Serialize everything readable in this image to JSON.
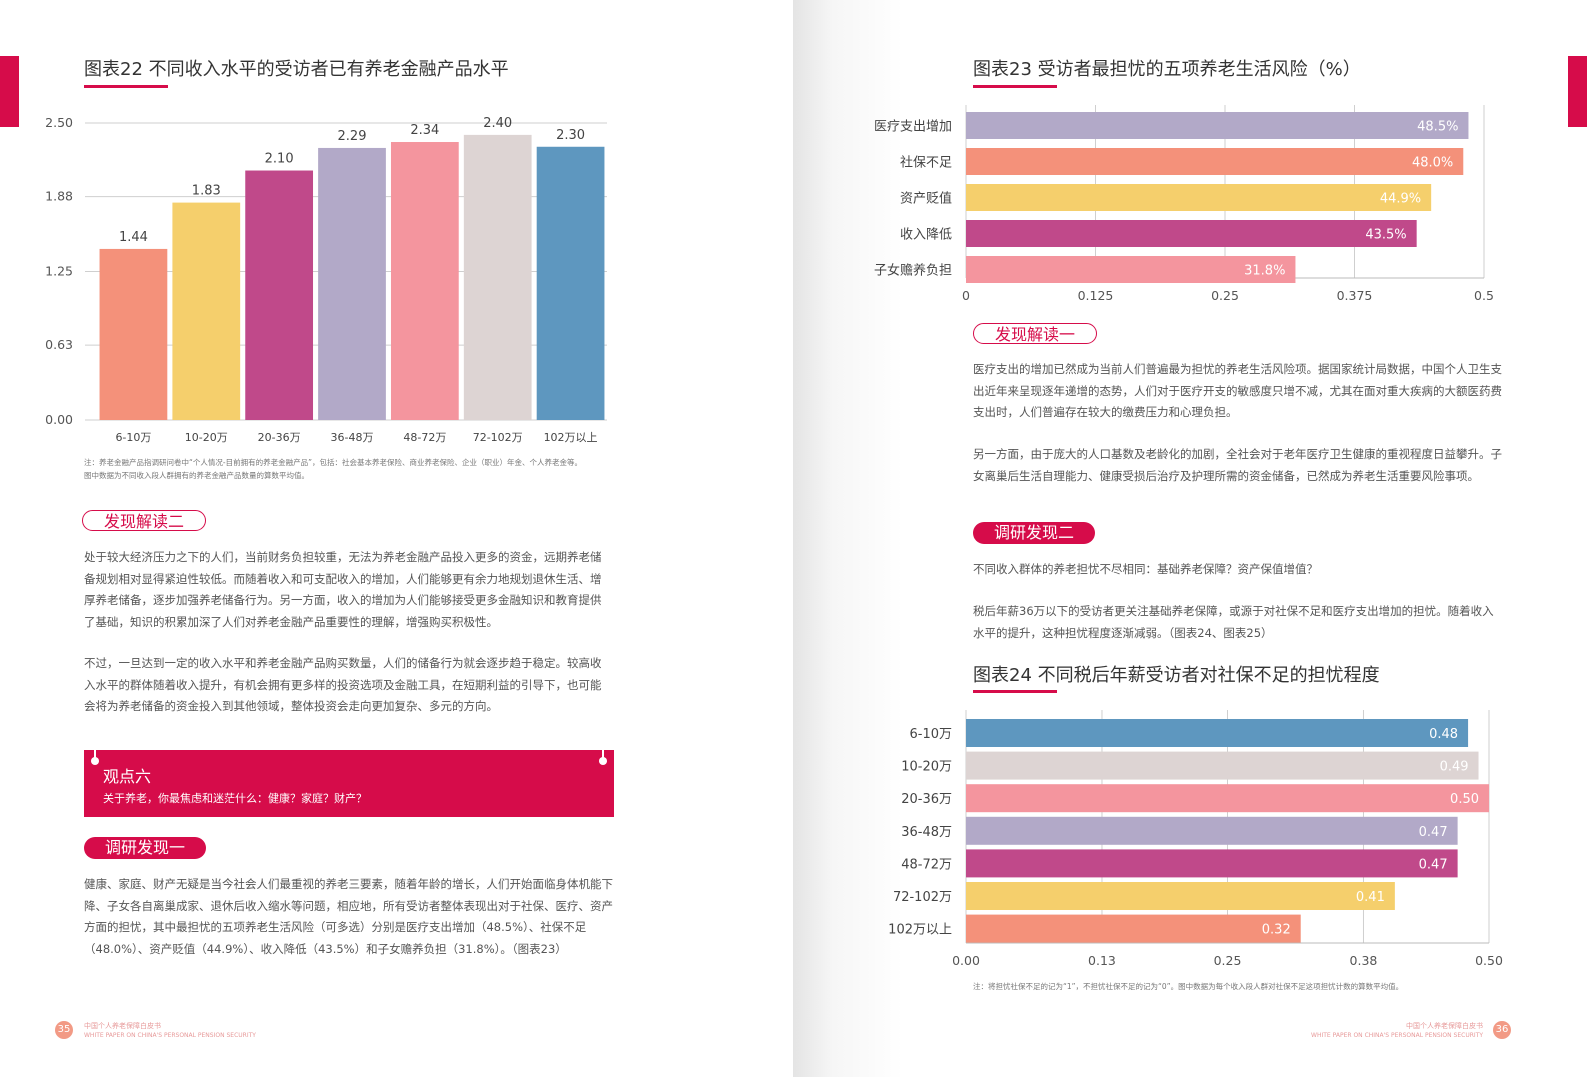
{
  "left_page": {
    "figure22": {
      "title": "图表22 不同收入水平的受访者已有养老金融产品水平",
      "note_line1": "注：养老金融产品指调研问卷中“个人情况-目前拥有的养老金融产品”，包括：社会基本养老保险、商业养老保险、企业（职业）年金、个人养老金等。",
      "note_line2": "图中数据为不同收入段人群拥有的养老金融产品数量的算数平均值。"
    },
    "finding2_tag": "发现解读二",
    "finding2_para1": "处于较大经济压力之下的人们，当前财务负担较重，无法为养老金融产品投入更多的资金，远期养老储备规划相对显得紧迫性较低。而随着收入和可支配收入的增加，人们能够更有余力地规划退休生活、增厚养老储备，逐步加强养老储备行为。另一方面，收入的增加为人们能够接受更多金融知识和教育提供了基础，知识的积累加深了人们对养老金融产品重要性的理解，增强购买积极性。",
    "finding2_para2": "不过，一旦达到一定的收入水平和养老金融产品购买数量，人们的储备行为就会逐步趋于稳定。较高收入水平的群体随着收入提升，有机会拥有更多样的投资选项及金融工具，在短期利益的引导下，也可能会将为养老储备的资金投入到其他领域，整体投资会走向更加复杂、多元的方向。",
    "banner_title": "观点六",
    "banner_subtitle": "关于养老，你最焦虑和迷茫什么：健康？家庭？财产？",
    "research1_tag": "调研发现一",
    "research1_para": "健康、家庭、财产无疑是当今社会人们最重视的养老三要素，随着年龄的增长，人们开始面临身体机能下降、子女各自离巢成家、退休后收入缩水等问题，相应地，所有受访者整体表现出对于社保、医疗、资产方面的担忧，其中最担忧的五项养老生活风险（可多选）分别是医疗支出增加（48.5%）、社保不足（48.0%）、资产贬值（44.9%）、收入降低（43.5%）和子女赡养负担（31.8%）。（图表23）",
    "footer_page_num": "35",
    "footer_title_cn": "中国个人养老保障白皮书",
    "footer_title_en": "WHITE PAPER ON CHINA'S PERSONAL PENSION SECURITY"
  },
  "right_page": {
    "figure23": {
      "title": "图表23 受访者最担忧的五项养老生活风险（%）"
    },
    "finding1_tag": "发现解读一",
    "finding1_para1": "医疗支出的增加已然成为当前人们普遍最为担忧的养老生活风险项。据国家统计局数据，中国个人卫生支出近年来呈现逐年递增的态势，人们对于医疗开支的敏感度只增不减，尤其在面对重大疾病的大额医药费支出时，人们普遍存在较大的缴费压力和心理负担。",
    "finding1_para2": "另一方面，由于庞大的人口基数及老龄化的加剧，全社会对于老年医疗卫生健康的重视程度日益攀升。子女离巢后生活自理能力、健康受损后治疗及护理所需的资金储备，已然成为养老生活重要风险事项。",
    "research2_tag": "调研发现二",
    "research2_question": "不同收入群体的养老担忧不尽相同：基础养老保障？资产保值增值？",
    "research2_para": "税后年薪36万以下的受访者更关注基础养老保障，或源于对社保不足和医疗支出增加的担忧。随着收入水平的提升，这种担忧程度逐渐减弱。（图表24、图表25）",
    "figure24": {
      "title": "图表24 不同税后年薪受访者对社保不足的担忧程度",
      "note": "注：将担忧社保不足的记为“1”，不担忧社保不足的记为“0”。图中数据为每个收入段人群对社保不足这项担忧计数的算数平均值。"
    },
    "footer_page_num": "36",
    "footer_title_cn": "中国个人养老保障白皮书",
    "footer_title_en": "WHITE PAPER ON CHINA'S PERSONAL PENSION SECURITY"
  },
  "colors": {
    "accent": "#d60c4a",
    "salmon": "#f4917a",
    "yellow": "#f5cf6c",
    "magenta": "#c0498a",
    "lavender": "#b2a9c8",
    "pink": "#f4959e",
    "beige": "#ddd4d3",
    "steel_blue": "#5e97bf"
  },
  "chart_data": [
    {
      "id": "fig22",
      "type": "bar",
      "categories": [
        "6-10万",
        "10-20万",
        "20-36万",
        "36-48万",
        "48-72万",
        "72-102万",
        "102万以上"
      ],
      "values": [
        1.44,
        1.83,
        2.1,
        2.29,
        2.34,
        2.4,
        2.3
      ],
      "value_labels": [
        "1.44",
        "1.83",
        "2.10",
        "2.29",
        "2.34",
        "2.40",
        "2.30"
      ],
      "colors": [
        "#f4917a",
        "#f5cf6c",
        "#c0498a",
        "#b2a9c8",
        "#f4959e",
        "#ddd4d3",
        "#5e97bf"
      ],
      "yticks": [
        "0.00",
        "0.63",
        "1.25",
        "1.88",
        "2.50"
      ],
      "ylim": [
        0,
        2.5
      ],
      "grid": true
    },
    {
      "id": "fig23",
      "type": "bar",
      "orientation": "horizontal",
      "categories": [
        "医疗支出增加",
        "社保不足",
        "资产贬值",
        "收入降低",
        "子女赡养负担"
      ],
      "values": [
        48.5,
        48.0,
        44.9,
        43.5,
        31.8
      ],
      "value_labels": [
        "48.5%",
        "48.0%",
        "44.9%",
        "43.5%",
        "31.8%"
      ],
      "colors": [
        "#b2a9c8",
        "#f4917a",
        "#f5cf6c",
        "#c0498a",
        "#f4959e"
      ],
      "xticks": [
        "0",
        "0.125",
        "0.25",
        "0.375",
        "0.5"
      ],
      "xlim": [
        0,
        0.5
      ],
      "grid": true
    },
    {
      "id": "fig24",
      "type": "bar",
      "orientation": "horizontal",
      "categories": [
        "6-10万",
        "10-20万",
        "20-36万",
        "36-48万",
        "48-72万",
        "72-102万",
        "102万以上"
      ],
      "values": [
        0.48,
        0.49,
        0.5,
        0.47,
        0.47,
        0.41,
        0.32
      ],
      "value_labels": [
        "0.48",
        "0.49",
        "0.50",
        "0.47",
        "0.47",
        "0.41",
        "0.32"
      ],
      "colors": [
        "#5e97bf",
        "#ddd4d3",
        "#f4959e",
        "#b2a9c8",
        "#c0498a",
        "#f5cf6c",
        "#f4917a"
      ],
      "xticks": [
        "0.00",
        "0.13",
        "0.25",
        "0.38",
        "0.50"
      ],
      "xlim": [
        0,
        0.5
      ],
      "grid": true
    }
  ]
}
